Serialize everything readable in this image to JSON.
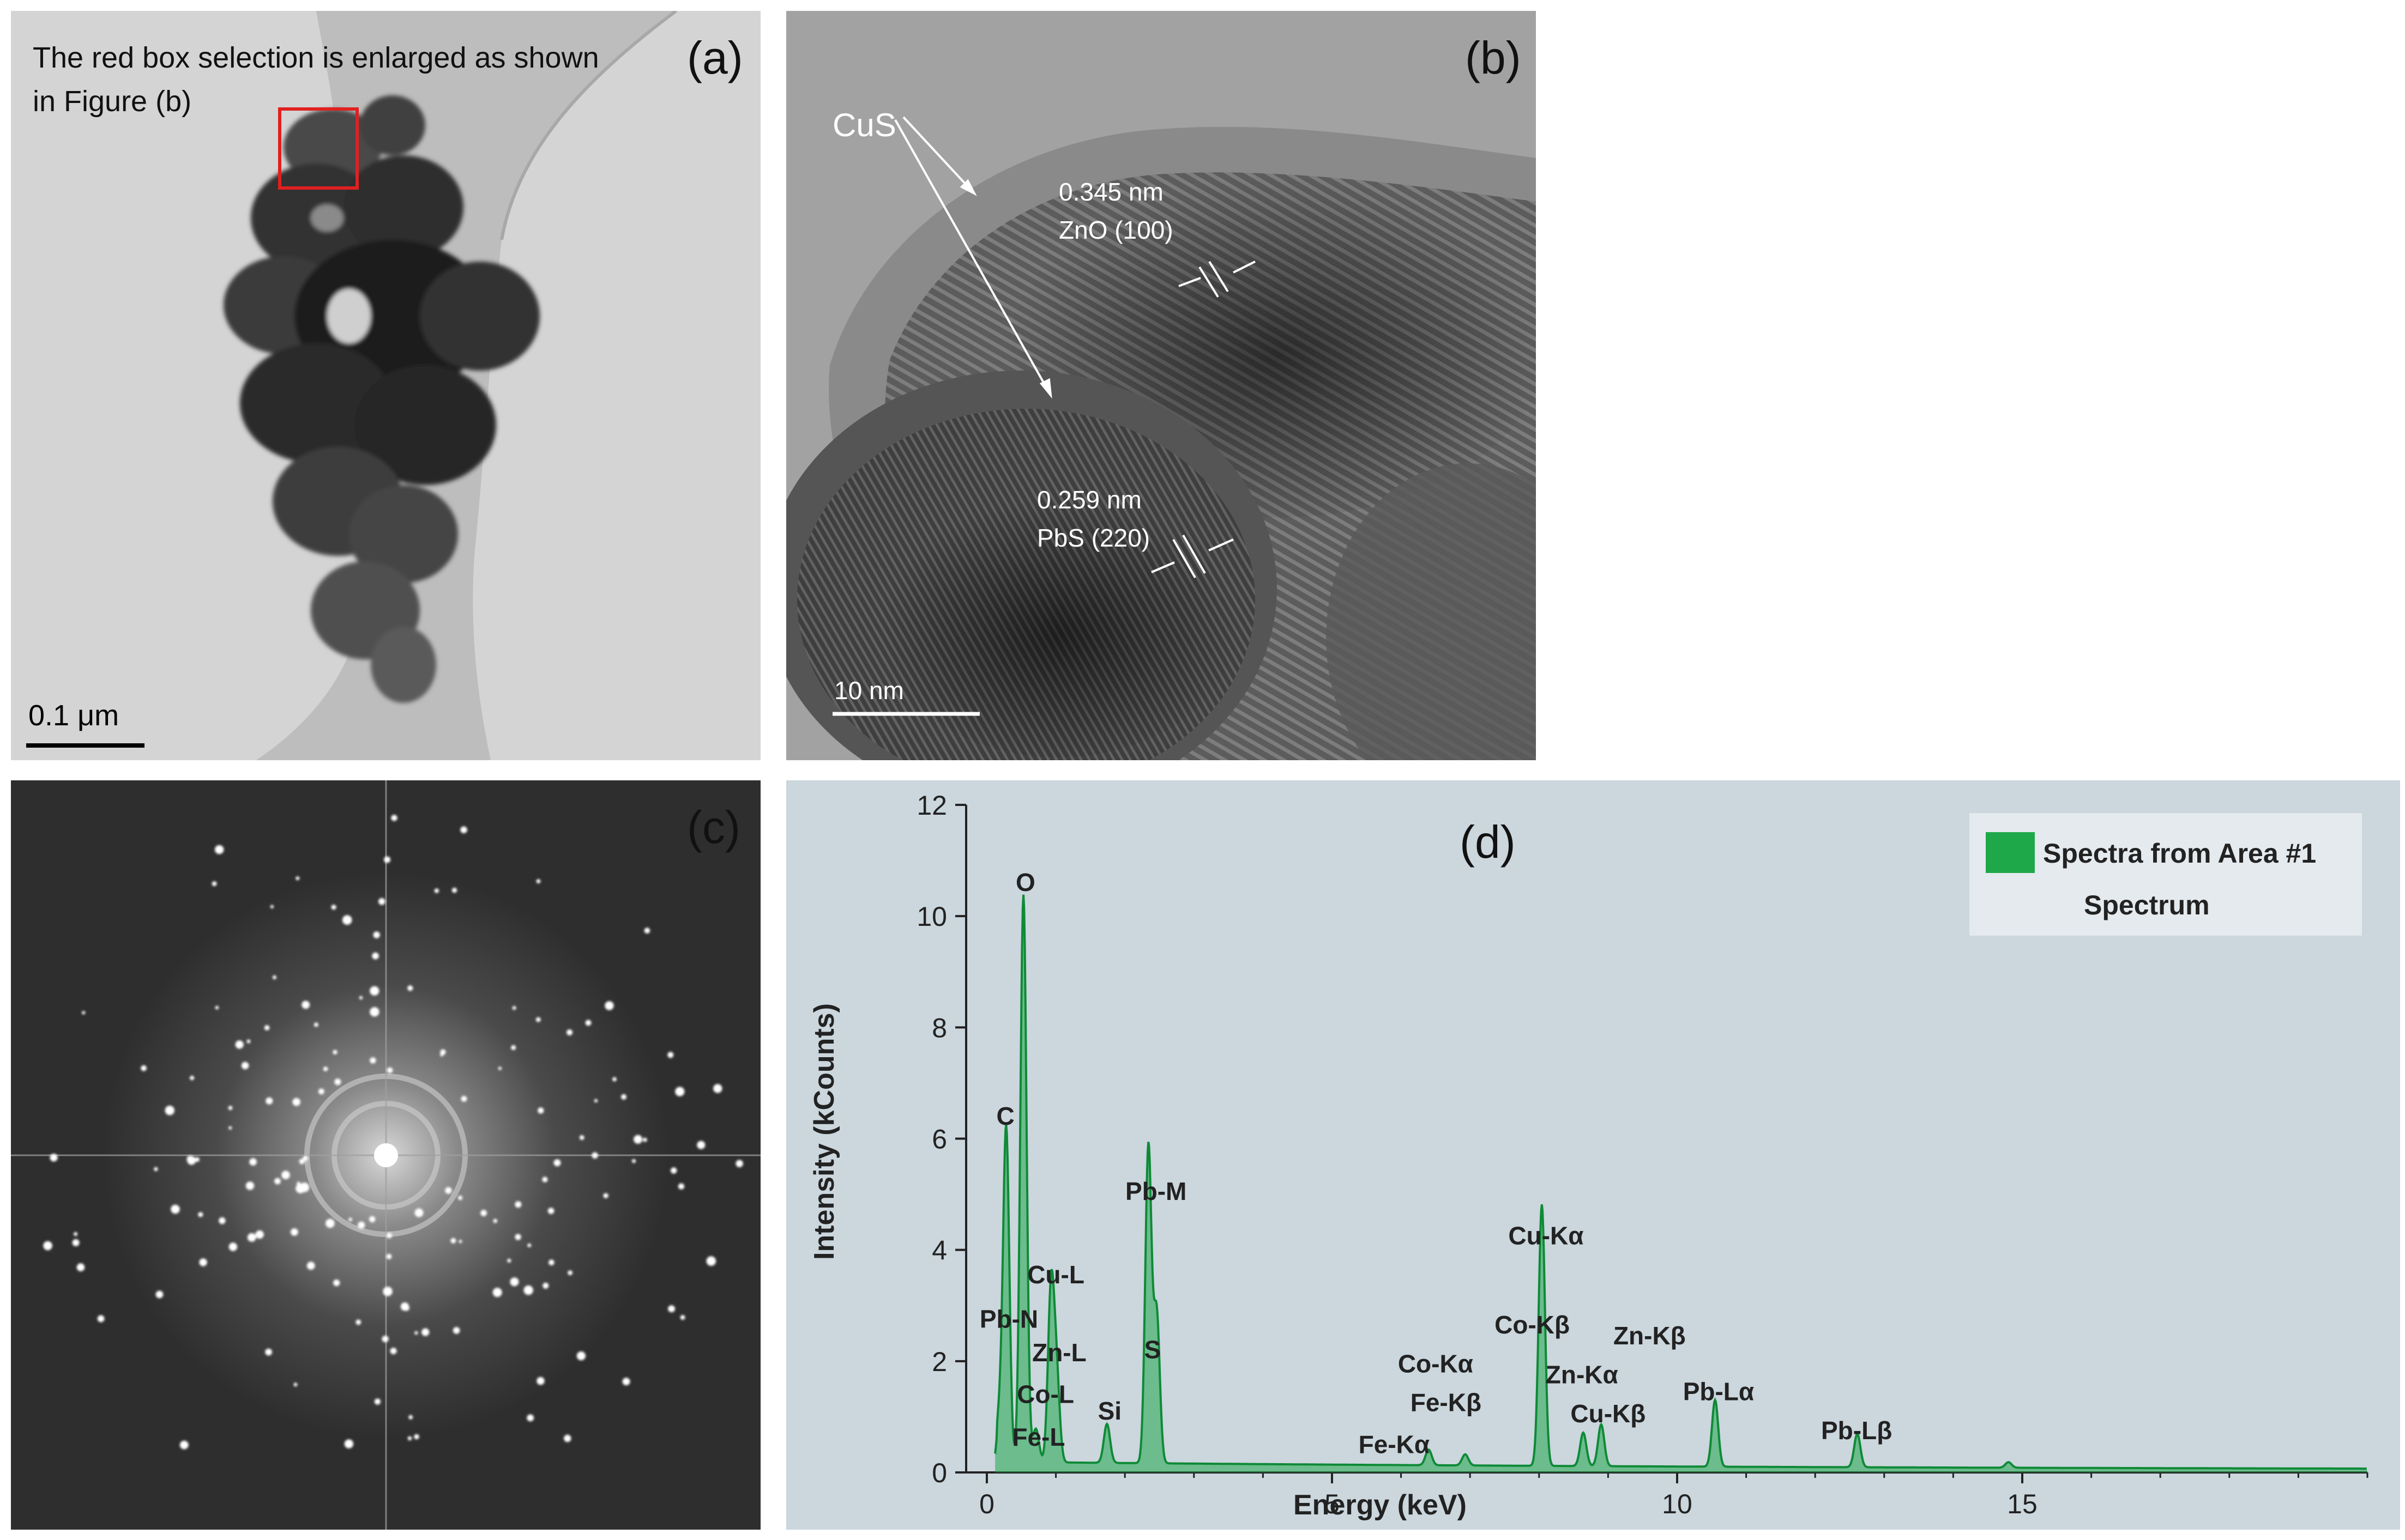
{
  "panel_a": {
    "label": "(a)",
    "caption_line1": "The red box selection is enlarged as shown",
    "caption_line2": "in Figure (b)",
    "scale_bar": "0.1 μm"
  },
  "panel_b": {
    "label": "(b)",
    "cus_label": "CuS",
    "zno_spacing": "0.345 nm",
    "zno_plane": "ZnO (100)",
    "pbs_spacing": "0.259 nm",
    "pbs_plane": "PbS (220)",
    "scale_bar": "10 nm"
  },
  "panel_c": {
    "label": "(c)"
  },
  "panel_d": {
    "label": "(d)",
    "chart_data": {
      "type": "line",
      "xlabel": "Energy (keV)",
      "ylabel": "Intensity (kCounts)",
      "xlim": [
        -0.3,
        20
      ],
      "ylim": [
        0,
        12
      ],
      "x_ticks": [
        0,
        5,
        10,
        15
      ],
      "y_ticks": [
        0,
        2,
        4,
        6,
        8,
        10,
        12
      ],
      "legend": {
        "position": "top-right",
        "entry": "Spectra from Area #1",
        "subtitle": "Spectrum",
        "color": "#1fa84a"
      },
      "series": [
        {
          "name": "Spectra from Area #1",
          "baseline": 0.15,
          "peaks": [
            {
              "x": 0.18,
              "y": 0.8
            },
            {
              "x": 0.28,
              "y": 6.0
            },
            {
              "x": 0.53,
              "y": 10.2
            },
            {
              "x": 0.71,
              "y": 0.6
            },
            {
              "x": 0.93,
              "y": 3.1
            },
            {
              "x": 1.01,
              "y": 1.5
            },
            {
              "x": 1.74,
              "y": 0.7
            },
            {
              "x": 2.34,
              "y": 5.7
            },
            {
              "x": 2.46,
              "y": 2.7
            },
            {
              "x": 6.4,
              "y": 0.28
            },
            {
              "x": 6.93,
              "y": 0.2
            },
            {
              "x": 8.04,
              "y": 4.7
            },
            {
              "x": 8.64,
              "y": 0.6
            },
            {
              "x": 8.9,
              "y": 0.75
            },
            {
              "x": 10.55,
              "y": 1.2
            },
            {
              "x": 12.61,
              "y": 0.6
            },
            {
              "x": 14.8,
              "y": 0.1
            }
          ]
        }
      ],
      "annotations": [
        {
          "text": "O",
          "x": 0.56,
          "y": 10.45
        },
        {
          "text": "C",
          "x": 0.27,
          "y": 6.25
        },
        {
          "text": "Cu-L",
          "x": 1.0,
          "y": 3.4
        },
        {
          "text": "Pb-N",
          "x": 0.32,
          "y": 2.6
        },
        {
          "text": "Zn-L",
          "x": 1.05,
          "y": 2.0
        },
        {
          "text": "Co-L",
          "x": 0.85,
          "y": 1.25
        },
        {
          "text": "Fe-L",
          "x": 0.75,
          "y": 0.48
        },
        {
          "text": "Si",
          "x": 1.78,
          "y": 0.95
        },
        {
          "text": "Pb-M",
          "x": 2.45,
          "y": 4.9
        },
        {
          "text": "S",
          "x": 2.4,
          "y": 2.05
        },
        {
          "text": "Cu-Kα",
          "x": 8.1,
          "y": 4.1
        },
        {
          "text": "Co-Kβ",
          "x": 7.9,
          "y": 2.5
        },
        {
          "text": "Co-Kα",
          "x": 6.5,
          "y": 1.8
        },
        {
          "text": "Zn-Kβ",
          "x": 9.6,
          "y": 2.3
        },
        {
          "text": "Zn-Kα",
          "x": 8.62,
          "y": 1.6
        },
        {
          "text": "Fe-Kβ",
          "x": 6.65,
          "y": 1.1
        },
        {
          "text": "Cu-Kβ",
          "x": 9.0,
          "y": 0.9
        },
        {
          "text": "Pb-Lα",
          "x": 10.6,
          "y": 1.3
        },
        {
          "text": "Fe-Kα",
          "x": 5.9,
          "y": 0.35
        },
        {
          "text": "Pb-Lβ",
          "x": 12.6,
          "y": 0.6
        }
      ]
    }
  }
}
